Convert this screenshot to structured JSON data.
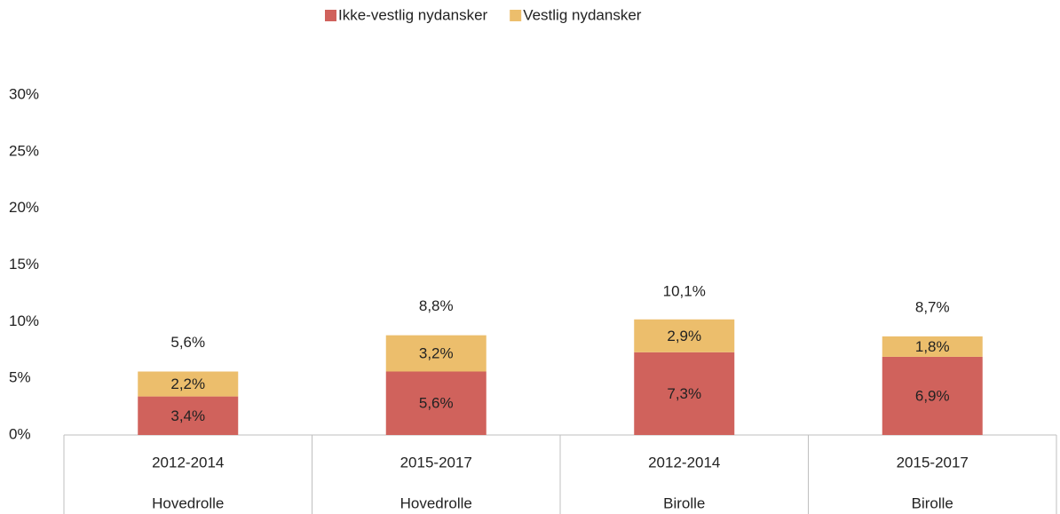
{
  "chart_data": {
    "type": "stacked_bar",
    "categories": [
      "2012-2014",
      "2015-2017",
      "2012-2014",
      "2015-2017"
    ],
    "category_groups": [
      "Hovedrolle",
      "Hovedrolle",
      "Birolle",
      "Birolle"
    ],
    "series": [
      {
        "name": "Ikke-vestlig nydansker",
        "color": "#d0625c",
        "values": [
          3.4,
          5.6,
          7.3,
          6.9
        ],
        "value_labels": [
          "3,4%",
          "5,6%",
          "7,3%",
          "6,9%"
        ]
      },
      {
        "name": "Vestlig nydansker",
        "color": "#ecbe6c",
        "values": [
          2.2,
          3.2,
          2.9,
          1.8
        ],
        "value_labels": [
          "2,2%",
          "3,2%",
          "2,9%",
          "1,8%"
        ]
      }
    ],
    "totals": [
      5.6,
      8.8,
      10.1,
      8.7
    ],
    "total_labels": [
      "5,6%",
      "8,8%",
      "10,1%",
      "8,7%"
    ],
    "ylim": [
      0,
      30
    ],
    "yticks": [
      {
        "value": 0,
        "label": "0%"
      },
      {
        "value": 5,
        "label": "5%"
      },
      {
        "value": 10,
        "label": "10%"
      },
      {
        "value": 15,
        "label": "15%"
      },
      {
        "value": 20,
        "label": "20%"
      },
      {
        "value": 25,
        "label": "25%"
      },
      {
        "value": 30,
        "label": "30%"
      }
    ],
    "legend": "top"
  }
}
